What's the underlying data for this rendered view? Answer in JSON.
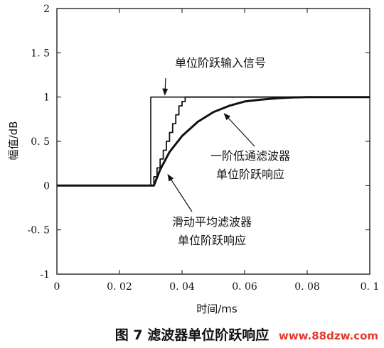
{
  "chart_data": {
    "type": "line",
    "xlabel": "时间/ms",
    "ylabel": "幅值/dB",
    "xlim": [
      0,
      0.1
    ],
    "ylim": [
      -1,
      2
    ],
    "x_ticks": [
      0,
      0.02,
      0.04,
      0.06,
      0.08,
      0.1
    ],
    "x_tick_labels": [
      "0",
      "0. 02",
      "0. 04",
      "0. 06",
      "0. 08",
      "0. 1"
    ],
    "y_ticks": [
      -1,
      -0.5,
      0,
      0.5,
      1,
      1.5,
      2
    ],
    "y_tick_labels": [
      "-1",
      "-0. 5",
      "0",
      "0. 5",
      "1",
      "1. 5",
      "2"
    ],
    "grid": false,
    "series": [
      {
        "name": "单位阶跃输入信号",
        "x": [
          0,
          0.03,
          0.03,
          0.1
        ],
        "y": [
          0,
          0,
          1,
          1
        ]
      },
      {
        "name": "一阶低通滤波器单位阶跃响应",
        "x": [
          0,
          0.031,
          0.033,
          0.036,
          0.04,
          0.045,
          0.05,
          0.055,
          0.06,
          0.065,
          0.07,
          0.075,
          0.08,
          0.1
        ],
        "y": [
          0,
          0,
          0.18,
          0.38,
          0.56,
          0.72,
          0.83,
          0.9,
          0.95,
          0.97,
          0.985,
          0.995,
          1,
          1
        ]
      },
      {
        "name": "滑动平均滤波器单位阶跃响应",
        "x": [
          0,
          0.031,
          0.031,
          0.032,
          0.032,
          0.033,
          0.033,
          0.034,
          0.034,
          0.035,
          0.035,
          0.036,
          0.036,
          0.037,
          0.037,
          0.038,
          0.038,
          0.039,
          0.039,
          0.04,
          0.04,
          0.041,
          0.041,
          0.1
        ],
        "y": [
          0,
          0,
          0.1,
          0.1,
          0.2,
          0.2,
          0.3,
          0.3,
          0.4,
          0.4,
          0.5,
          0.5,
          0.6,
          0.6,
          0.7,
          0.7,
          0.8,
          0.8,
          0.9,
          0.9,
          0.95,
          0.95,
          1,
          1
        ]
      }
    ],
    "annotations": [
      {
        "text": "单位阶跃输入信号",
        "arrow_to": [
          0.0345,
          1.0
        ]
      },
      {
        "lines": [
          "一阶低通滤波器",
          "单位阶跃响应"
        ],
        "arrow_to": [
          0.053,
          0.83
        ]
      },
      {
        "lines": [
          "滑动平均滤波器",
          "单位阶跃响应"
        ],
        "arrow_to": [
          0.035,
          0.14
        ]
      }
    ]
  },
  "caption": "图 7  滤波器单位阶跃响应",
  "watermark": "www.88dzw.com"
}
